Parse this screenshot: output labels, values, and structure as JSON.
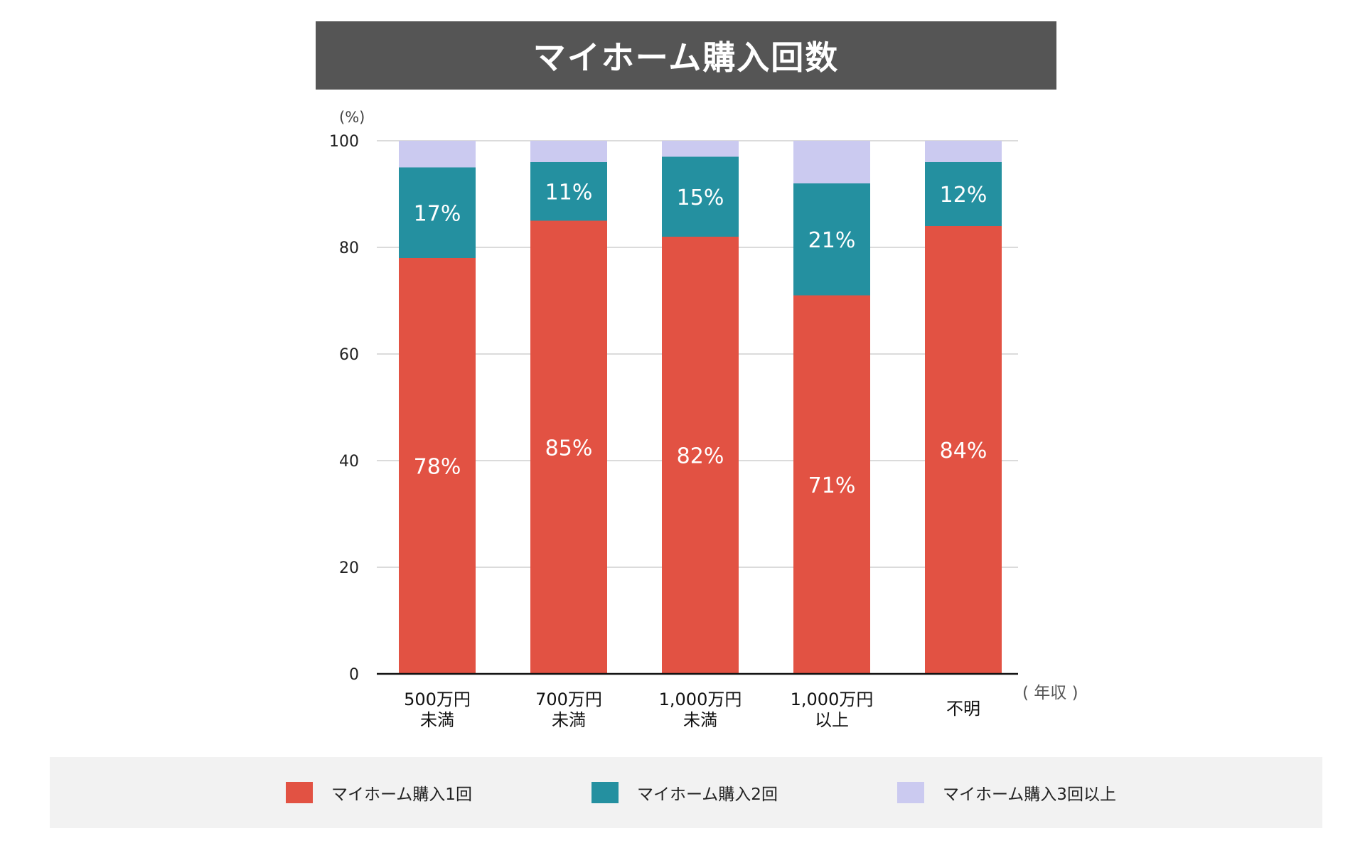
{
  "title": "マイホーム購入回数",
  "chart_data": {
    "type": "bar",
    "stacked": true,
    "title": "マイホーム購入回数",
    "ylabel": "(%)",
    "xlabel": "( 年収 )",
    "ylim": [
      0,
      100
    ],
    "yticks": [
      0,
      20,
      40,
      60,
      80,
      100
    ],
    "grid": true,
    "categories": [
      [
        "500万円",
        "未満"
      ],
      [
        "700万円",
        "未満"
      ],
      [
        "1,000万円",
        "未満"
      ],
      [
        "1,000万円",
        "以上"
      ],
      [
        "不明"
      ]
    ],
    "series": [
      {
        "name": "マイホーム購入1回",
        "color": "#e25243",
        "values": [
          78,
          85,
          82,
          71,
          84
        ],
        "labels": [
          "78%",
          "85%",
          "82%",
          "71%",
          "84%"
        ]
      },
      {
        "name": "マイホーム購入2回",
        "color": "#2490a0",
        "values": [
          17,
          11,
          15,
          21,
          12
        ],
        "labels": [
          "17%",
          "11%",
          "15%",
          "21%",
          "12%"
        ]
      },
      {
        "name": "マイホーム購入3回以上",
        "color": "#cbcaf0",
        "values": [
          5,
          4,
          3,
          8,
          4
        ],
        "labels": [
          "",
          "",
          "",
          "",
          ""
        ]
      }
    ],
    "legend_position": "bottom"
  },
  "legend": [
    {
      "label": "マイホーム購入1回",
      "color": "#e25243"
    },
    {
      "label": "マイホーム購入2回",
      "color": "#2490a0"
    },
    {
      "label": "マイホーム購入3回以上",
      "color": "#cbcaf0"
    }
  ]
}
